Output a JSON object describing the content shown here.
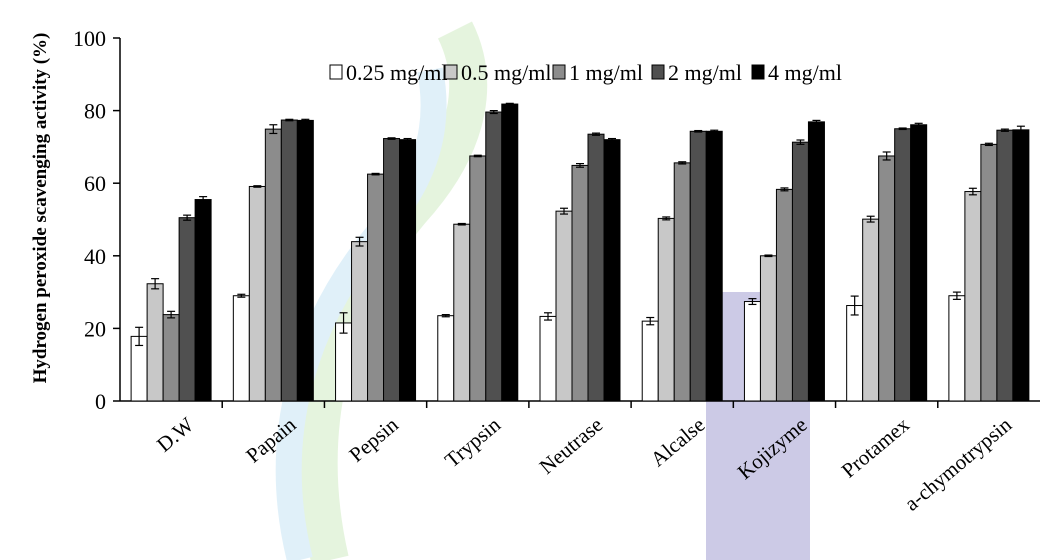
{
  "chart_data": {
    "type": "bar",
    "title": "",
    "xlabel": "",
    "ylabel": "Hydrogen peroxide scavenging activity (%)",
    "ylim": [
      0,
      100
    ],
    "yticks": [
      "0",
      "20",
      "40",
      "60",
      "80",
      "100"
    ],
    "grid": false,
    "legend_position": "top-right",
    "categories": [
      "D.W",
      "Papain",
      "Pepsin",
      "Trypsin",
      "Neutrase",
      "Alcalse",
      "Kojizyme",
      "Protamex",
      "a-chymotrypsin"
    ],
    "series": [
      {
        "name": "0.25 mg/ml",
        "color": "#ffffff",
        "values": [
          17.8,
          29.0,
          21.5,
          23.5,
          23.3,
          22.0,
          27.4,
          26.3,
          29.0
        ],
        "errors": [
          2.5,
          0.4,
          2.8,
          0.3,
          1.0,
          1.0,
          0.8,
          2.6,
          1.0
        ]
      },
      {
        "name": "0.5 mg/ml",
        "color": "#c8c8c8",
        "values": [
          32.3,
          59.1,
          43.9,
          48.7,
          52.3,
          50.3,
          40.0,
          50.1,
          57.7
        ],
        "errors": [
          1.4,
          0.2,
          1.2,
          0.2,
          0.8,
          0.4,
          0.2,
          0.8,
          0.9
        ]
      },
      {
        "name": "1 mg/ml",
        "color": "#8c8c8c",
        "values": [
          23.8,
          74.9,
          62.5,
          67.5,
          64.9,
          65.6,
          58.3,
          67.5,
          70.7
        ],
        "errors": [
          0.9,
          1.2,
          0.2,
          0.2,
          0.5,
          0.3,
          0.4,
          1.1,
          0.3
        ]
      },
      {
        "name": "2 mg/ml",
        "color": "#505050",
        "values": [
          50.5,
          77.4,
          72.3,
          79.6,
          73.5,
          74.3,
          71.3,
          75.0,
          74.6
        ],
        "errors": [
          0.7,
          0.2,
          0.2,
          0.4,
          0.3,
          0.2,
          0.6,
          0.2,
          0.3
        ]
      },
      {
        "name": "4 mg/ml",
        "color": "#000000",
        "values": [
          55.5,
          77.3,
          72.0,
          81.8,
          72.0,
          74.3,
          76.9,
          76.1,
          74.7
        ],
        "errors": [
          0.8,
          0.3,
          0.3,
          0.2,
          0.3,
          0.3,
          0.4,
          0.4,
          1.0
        ]
      }
    ]
  }
}
